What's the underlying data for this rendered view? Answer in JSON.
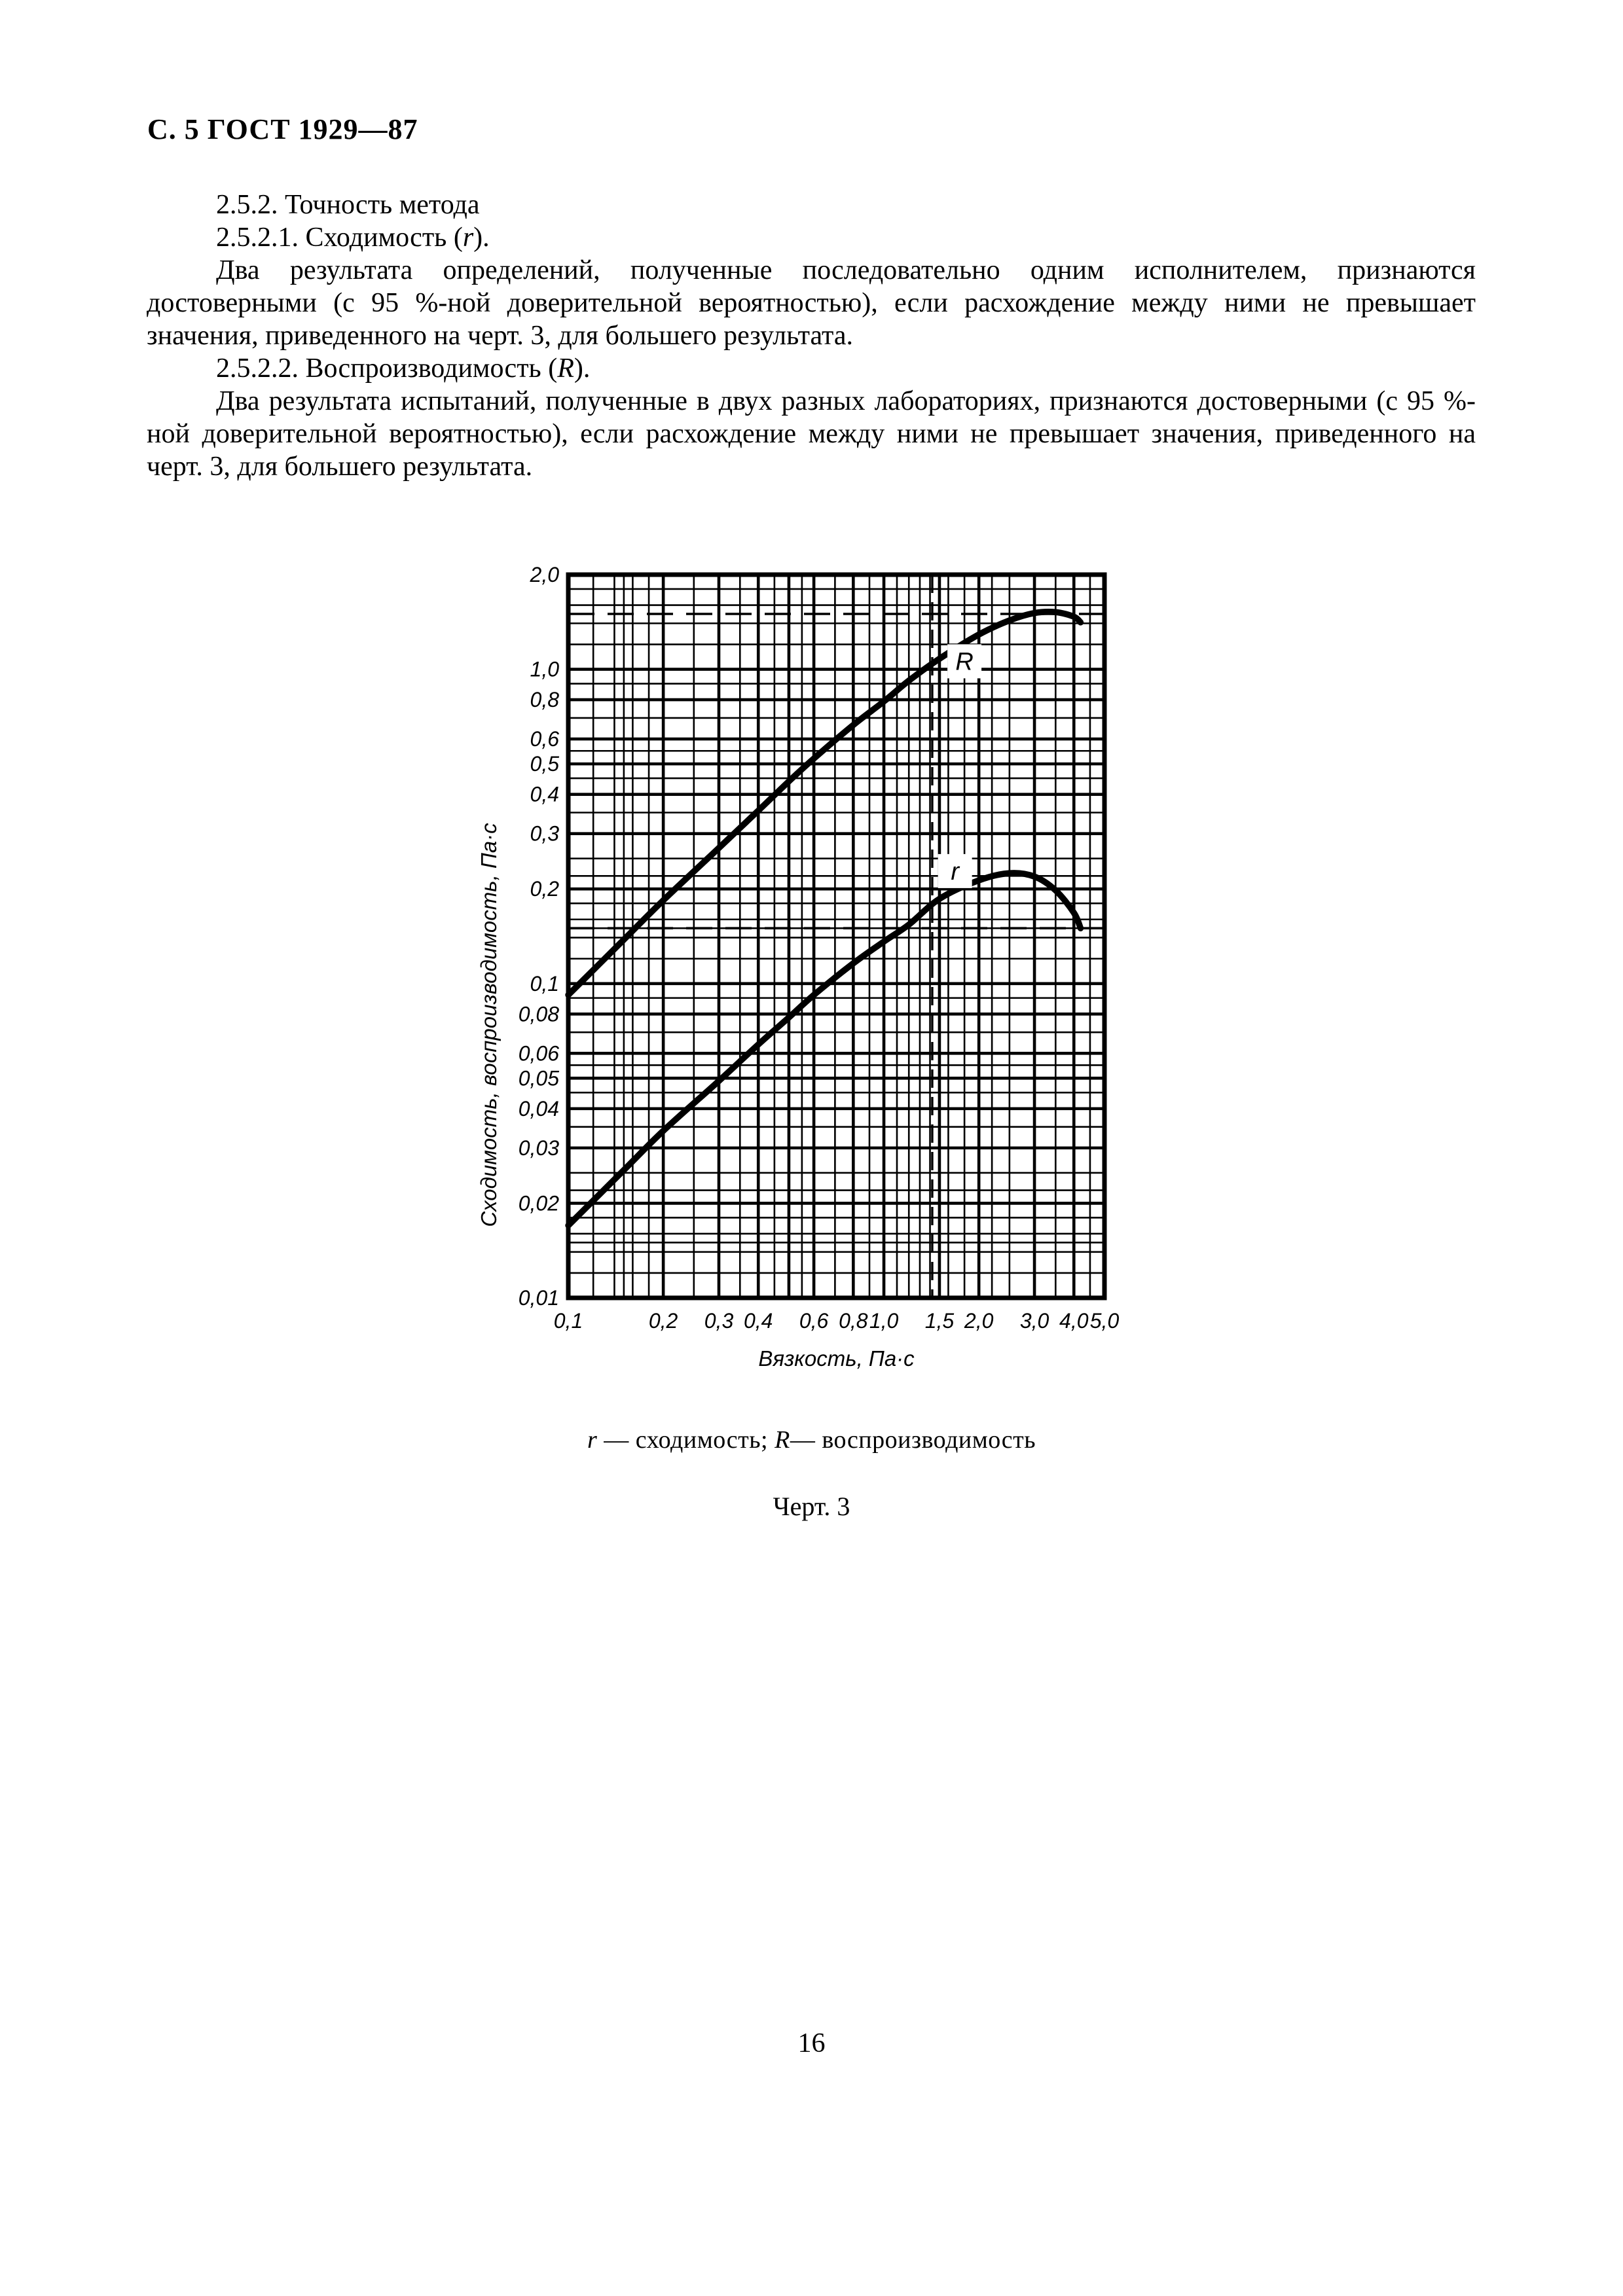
{
  "header": {
    "title": "С. 5 ГОСТ 1929—87"
  },
  "body": {
    "clause_252": "2.5.2. Точность метода",
    "clause_2521_pre": "2.5.2.1. Сходимость (",
    "clause_2521_sym": "r",
    "clause_2521_post": ").",
    "para_1": "Два результата определений, полученные последовательно одним исполнителем, признаются достоверными (с 95 %-ной доверительной вероятностью), если расхождение между ними не превышает значения, приведенного на черт. 3, для большего результата.",
    "clause_2522_pre": "2.5.2.2. Воспроизводимость (",
    "clause_2522_sym": "R",
    "clause_2522_post": ").",
    "para_2": "Два результата испытаний, полученные в двух разных лабораториях, признаются достоверными (с 95 %-ной доверительной вероятностью), если расхождение между ними не превышает значения, приведенного на черт. 3, для большего результата."
  },
  "figure": {
    "caption_r_sym": "r",
    "caption_r_text": " — сходимость; ",
    "caption_R_sym": "R",
    "caption_R_text": "— воспроизводимость",
    "number": "Черт. 3"
  },
  "footer": {
    "page_number": "16"
  },
  "chart_data": {
    "type": "line",
    "title": "",
    "xlabel": "Вязкость, Па·с",
    "ylabel": "Сходимость, воспроизводимость, Па·с",
    "x_scale": "log",
    "y_scale": "log",
    "xlim": [
      0.1,
      5.0
    ],
    "ylim": [
      0.01,
      2.0
    ],
    "grid": "on",
    "x_ticks": {
      "values": [
        0.1,
        0.2,
        0.3,
        0.4,
        0.6,
        0.8,
        1.0,
        1.5,
        2.0,
        3.0,
        4.0,
        5.0
      ],
      "labels": [
        "0,1",
        "0,2",
        "0,3",
        "0,4",
        "0,6",
        "0,8",
        "1,0",
        "1,5",
        "2,0",
        "3,0",
        "4,0",
        "5,0"
      ]
    },
    "y_ticks": {
      "values": [
        2.0,
        1.0,
        0.8,
        0.6,
        0.5,
        0.4,
        0.3,
        0.2,
        0.1,
        0.08,
        0.06,
        0.05,
        0.04,
        0.03,
        0.02,
        0.01
      ],
      "labels": [
        "2,0",
        "1,0",
        "0,8",
        "0,6",
        "0,5",
        "0,4",
        "0,3",
        "0,2",
        "0,1",
        "0,08",
        "0,06",
        "0,05",
        "0,04",
        "0,03",
        "0,02",
        "0,01"
      ]
    },
    "grid_lines": {
      "x_major": [
        0.1,
        0.2,
        0.3,
        0.4,
        0.5,
        0.6,
        0.8,
        1.0,
        1.5,
        2.0,
        3.0,
        4.0,
        5.0
      ],
      "x_minor": [
        0.12,
        0.14,
        0.15,
        0.16,
        0.18,
        0.25,
        0.35,
        0.45,
        0.55,
        0.7,
        0.9,
        1.1,
        1.2,
        1.3,
        1.4,
        1.6,
        1.8,
        2.2,
        2.5,
        3.5,
        4.5
      ],
      "y_major": [
        0.01,
        0.02,
        0.03,
        0.04,
        0.05,
        0.06,
        0.08,
        0.1,
        0.2,
        0.3,
        0.4,
        0.5,
        0.6,
        0.8,
        1.0,
        2.0
      ],
      "y_minor": [
        0.012,
        0.014,
        0.015,
        0.016,
        0.018,
        0.022,
        0.025,
        0.035,
        0.045,
        0.055,
        0.07,
        0.09,
        0.12,
        0.14,
        0.15,
        0.16,
        0.18,
        0.22,
        0.25,
        0.35,
        0.45,
        0.55,
        0.7,
        0.9,
        1.2,
        1.4,
        1.6,
        1.8
      ]
    },
    "dashed_guides": {
      "horizontal": [
        1.5,
        0.15
      ],
      "vertical": [
        1.5
      ]
    },
    "series": [
      {
        "name": "R",
        "label": "R",
        "label_at": [
          1.8,
          1.06
        ],
        "points": [
          [
            0.1,
            0.092
          ],
          [
            0.15,
            0.138
          ],
          [
            0.2,
            0.184
          ],
          [
            0.3,
            0.27
          ],
          [
            0.4,
            0.355
          ],
          [
            0.5,
            0.44
          ],
          [
            0.6,
            0.52
          ],
          [
            0.8,
            0.665
          ],
          [
            1.0,
            0.79
          ],
          [
            1.2,
            0.92
          ],
          [
            1.5,
            1.08
          ],
          [
            2.0,
            1.29
          ],
          [
            2.5,
            1.43
          ],
          [
            3.0,
            1.51
          ],
          [
            3.5,
            1.52
          ],
          [
            4.0,
            1.47
          ],
          [
            4.2,
            1.41
          ]
        ]
      },
      {
        "name": "r",
        "label": "r",
        "label_at": [
          1.68,
          0.228
        ],
        "points": [
          [
            0.1,
            0.017
          ],
          [
            0.15,
            0.0255
          ],
          [
            0.2,
            0.034
          ],
          [
            0.3,
            0.049
          ],
          [
            0.4,
            0.064
          ],
          [
            0.5,
            0.078
          ],
          [
            0.6,
            0.092
          ],
          [
            0.8,
            0.116
          ],
          [
            1.0,
            0.136
          ],
          [
            1.2,
            0.154
          ],
          [
            1.5,
            0.186
          ],
          [
            2.0,
            0.213
          ],
          [
            2.5,
            0.2245
          ],
          [
            3.0,
            0.219
          ],
          [
            3.5,
            0.198
          ],
          [
            4.0,
            0.168
          ],
          [
            4.2,
            0.15
          ]
        ]
      }
    ]
  }
}
